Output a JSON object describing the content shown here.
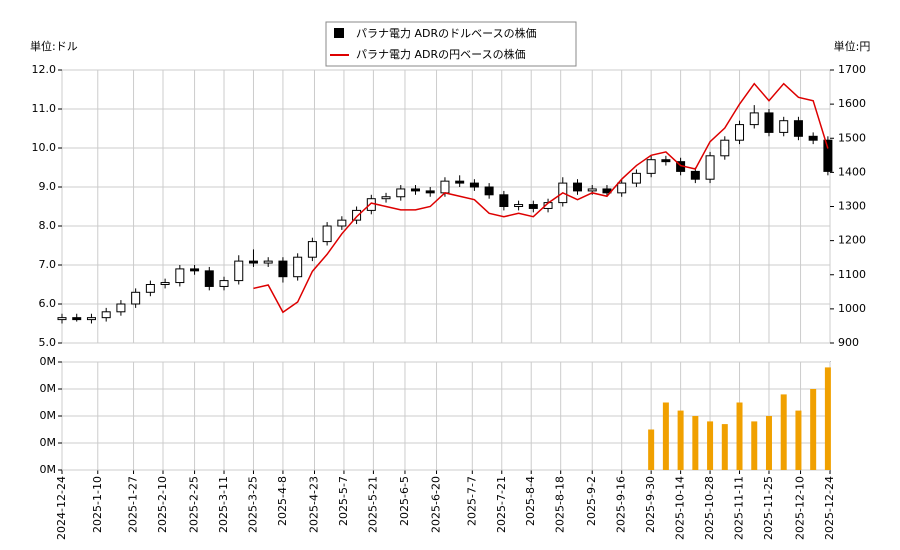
{
  "chart_data": [
    {
      "type": "candlestick",
      "y_label": "単位:ドル",
      "y2_label": "単位:円",
      "x": [
        "2024-12-24",
        "2024-12-31",
        "2025-1-7",
        "2025-1-14",
        "2025-1-21",
        "2025-1-28",
        "2025-2-4",
        "2025-2-11",
        "2025-2-18",
        "2025-2-25",
        "2025-3-4",
        "2025-3-11",
        "2025-3-18",
        "2025-3-25",
        "2025-4-1",
        "2025-4-8",
        "2025-4-15",
        "2025-4-22",
        "2025-4-29",
        "2025-5-6",
        "2025-5-13",
        "2025-5-20",
        "2025-5-27",
        "2025-6-3",
        "2025-6-10",
        "2025-6-17",
        "2025-6-24",
        "2025-7-1",
        "2025-7-8",
        "2025-7-15",
        "2025-7-22",
        "2025-7-29",
        "2025-8-5",
        "2025-8-12",
        "2025-8-19",
        "2025-8-26",
        "2025-9-2",
        "2025-9-9",
        "2025-9-16",
        "2025-9-23",
        "2025-9-30",
        "2025-10-7",
        "2025-10-14",
        "2025-10-21",
        "2025-10-28",
        "2025-11-4",
        "2025-11-11",
        "2025-11-18",
        "2025-11-25",
        "2025-12-2",
        "2025-12-9",
        "2025-12-16",
        "2025-12-23"
      ],
      "series": [
        {
          "name": "パラナ電力 ADRのドルベースの株価",
          "color": "#000000",
          "open": [
            5.6,
            5.65,
            5.6,
            5.65,
            5.8,
            6.0,
            6.3,
            6.5,
            6.55,
            6.9,
            6.85,
            6.45,
            6.6,
            7.1,
            7.05,
            7.1,
            6.7,
            7.2,
            7.6,
            8.0,
            8.15,
            8.4,
            8.7,
            8.75,
            8.95,
            8.9,
            8.85,
            9.15,
            9.1,
            9.0,
            8.8,
            8.5,
            8.55,
            8.45,
            8.6,
            9.1,
            8.9,
            8.95,
            8.85,
            9.1,
            9.35,
            9.7,
            9.65,
            9.4,
            9.2,
            9.8,
            10.2,
            10.6,
            10.9,
            10.4,
            10.7,
            10.3,
            10.2
          ],
          "high": [
            5.75,
            5.75,
            5.75,
            5.9,
            6.1,
            6.4,
            6.6,
            6.65,
            7.0,
            7.0,
            6.95,
            6.7,
            7.25,
            7.4,
            7.2,
            7.2,
            7.3,
            7.7,
            8.1,
            8.25,
            8.5,
            8.8,
            8.85,
            9.05,
            9.05,
            9.0,
            9.25,
            9.3,
            9.2,
            9.1,
            8.9,
            8.65,
            8.65,
            8.7,
            9.25,
            9.2,
            9.05,
            9.05,
            9.2,
            9.45,
            9.8,
            9.8,
            9.75,
            9.5,
            9.9,
            10.3,
            10.7,
            11.1,
            11.0,
            10.8,
            10.8,
            10.4,
            10.3
          ],
          "low": [
            5.5,
            5.55,
            5.5,
            5.55,
            5.7,
            5.9,
            6.2,
            6.4,
            6.45,
            6.75,
            6.35,
            6.35,
            6.5,
            6.95,
            6.95,
            6.55,
            6.6,
            7.1,
            7.5,
            7.9,
            8.05,
            8.3,
            8.6,
            8.65,
            8.8,
            8.75,
            8.75,
            9.0,
            8.9,
            8.7,
            8.4,
            8.4,
            8.35,
            8.35,
            8.5,
            8.8,
            8.8,
            8.75,
            8.75,
            9.0,
            9.25,
            9.55,
            9.3,
            9.1,
            9.1,
            9.7,
            10.1,
            10.5,
            10.3,
            10.3,
            10.2,
            10.1,
            9.3
          ],
          "close": [
            5.65,
            5.6,
            5.65,
            5.8,
            6.0,
            6.3,
            6.5,
            6.55,
            6.9,
            6.85,
            6.45,
            6.6,
            7.1,
            7.05,
            7.1,
            6.7,
            7.2,
            7.6,
            8.0,
            8.15,
            8.4,
            8.7,
            8.75,
            8.95,
            8.9,
            8.85,
            9.15,
            9.1,
            9.0,
            8.8,
            8.5,
            8.55,
            8.45,
            8.6,
            9.1,
            8.9,
            8.95,
            8.85,
            9.1,
            9.35,
            9.7,
            9.65,
            9.4,
            9.2,
            9.8,
            10.2,
            10.6,
            10.9,
            10.4,
            10.7,
            10.3,
            10.2,
            9.4
          ]
        },
        {
          "name": "パラナ電力 ADRの円ベースの株価",
          "color": "#dd0000",
          "axis": "y2",
          "values": [
            null,
            null,
            null,
            null,
            null,
            null,
            null,
            null,
            null,
            null,
            null,
            null,
            null,
            1060,
            1070,
            990,
            1020,
            1110,
            1160,
            1220,
            1270,
            1310,
            1300,
            1290,
            1290,
            1300,
            1340,
            1330,
            1320,
            1280,
            1270,
            1280,
            1270,
            1310,
            1340,
            1320,
            1340,
            1330,
            1380,
            1420,
            1450,
            1460,
            1420,
            1410,
            1490,
            1530,
            1600,
            1660,
            1610,
            1660,
            1620,
            1610,
            1470
          ]
        }
      ],
      "xlim": [
        "2024-12-24",
        "2025-12-24"
      ],
      "ylim": [
        5,
        12
      ],
      "yticks": [
        {
          "value": 5,
          "label": "5.0"
        },
        {
          "value": 6,
          "label": "6.0"
        },
        {
          "value": 7,
          "label": "7.0"
        },
        {
          "value": 8,
          "label": "8.0"
        },
        {
          "value": 9,
          "label": "9.0"
        },
        {
          "value": 10,
          "label": "10.0"
        },
        {
          "value": 11,
          "label": "11.0"
        },
        {
          "value": 12,
          "label": "12.0"
        }
      ],
      "y2lim": [
        900,
        1700
      ],
      "y2ticks": [
        900,
        1000,
        1100,
        1200,
        1300,
        1400,
        1500,
        1600,
        1700
      ],
      "grid": true
    },
    {
      "type": "bar",
      "color": "#f0a000",
      "values": [
        0,
        0,
        0,
        0,
        0,
        0,
        0,
        0,
        0,
        0,
        0,
        0,
        0,
        0,
        0,
        0,
        0,
        0,
        0,
        0,
        0,
        0,
        0,
        0,
        0,
        0,
        0,
        0,
        0,
        0,
        0,
        0,
        0,
        0,
        0,
        0,
        0,
        0,
        0,
        0,
        150000,
        250000,
        220000,
        200000,
        180000,
        170000,
        250000,
        180000,
        200000,
        280000,
        220000,
        300000,
        380000
      ],
      "ylim": [
        0,
        400000
      ],
      "yticks": [
        {
          "value": 0,
          "label": "0M"
        },
        {
          "value": 100000,
          "label": "0M"
        },
        {
          "value": 200000,
          "label": "0M"
        },
        {
          "value": 300000,
          "label": "0M"
        },
        {
          "value": 400000,
          "label": "0M"
        }
      ],
      "xticks": [
        "2024-12-24",
        "2025-1-10",
        "2025-1-27",
        "2025-2-10",
        "2025-2-25",
        "2025-3-11",
        "2025-3-25",
        "2025-4-8",
        "2025-4-23",
        "2025-5-7",
        "2025-5-21",
        "2025-6-5",
        "2025-6-20",
        "2025-7-7",
        "2025-7-21",
        "2025-8-4",
        "2025-8-18",
        "2025-9-2",
        "2025-9-16",
        "2025-9-30",
        "2025-10-14",
        "2025-10-28",
        "2025-11-11",
        "2025-11-25",
        "2025-12-10",
        "2025-12-24"
      ],
      "grid": true
    }
  ]
}
